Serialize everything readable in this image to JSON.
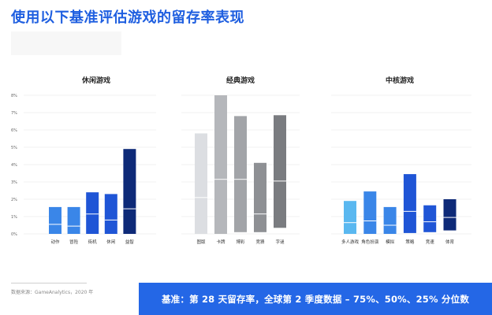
{
  "title": "使用以下基准评估游戏的留存率表现",
  "source": "数据来源：GameAnalytics，2020 年",
  "footer": "基准：第 28 天留存率，全球第 2 季度数据 – 75%、50%、25% 分位数",
  "chart_data": [
    {
      "type": "bar",
      "title": "休闲游戏",
      "ylim": [
        0,
        8
      ],
      "yticks": [
        "0%",
        "1%",
        "2%",
        "3%",
        "4%",
        "5%",
        "6%",
        "7%",
        "8%"
      ],
      "categories": [
        "动作",
        "冒险",
        "街机",
        "休闲",
        "益智"
      ],
      "series": [
        {
          "name": "75%",
          "values": [
            1.55,
            1.55,
            2.4,
            2.3,
            4.9
          ]
        },
        {
          "name": "50%",
          "values": [
            0.55,
            0.45,
            1.15,
            0.8,
            1.45
          ]
        },
        {
          "name": "25%",
          "values": [
            0.0,
            0.0,
            0.0,
            0.0,
            0.0
          ]
        }
      ],
      "colors": [
        "#3a86e8",
        "#3a86e8",
        "#1f55d6",
        "#1f55d6",
        "#0e2a78"
      ]
    },
    {
      "type": "bar",
      "title": "经典游戏",
      "ylim": [
        0,
        8
      ],
      "categories": [
        "图版",
        "卡牌",
        "博彩",
        "竞猜",
        "字谜"
      ],
      "series": [
        {
          "name": "75%",
          "values": [
            5.8,
            8.0,
            6.8,
            4.1,
            6.85
          ]
        },
        {
          "name": "50%",
          "values": [
            2.1,
            3.15,
            3.15,
            1.15,
            3.05
          ]
        },
        {
          "name": "25%",
          "values": [
            0.0,
            0.0,
            0.1,
            0.1,
            0.35
          ]
        }
      ],
      "colors": [
        "#dcdee2",
        "#b5b7bb",
        "#a2a4a8",
        "#8e9094",
        "#7a7c80"
      ]
    },
    {
      "type": "bar",
      "title": "中核游戏",
      "ylim": [
        0,
        8
      ],
      "categories": [
        "多人游戏",
        "角色扮演",
        "模拟",
        "策略",
        "竞速",
        "体育"
      ],
      "series": [
        {
          "name": "75%",
          "values": [
            1.9,
            2.45,
            1.55,
            3.45,
            1.65,
            2.0
          ]
        },
        {
          "name": "50%",
          "values": [
            0.65,
            0.75,
            0.5,
            1.3,
            0.7,
            0.95
          ]
        },
        {
          "name": "25%",
          "values": [
            0.0,
            0.0,
            0.0,
            0.05,
            0.1,
            0.2
          ]
        }
      ],
      "colors": [
        "#5ab8f0",
        "#3a86e8",
        "#3a86e8",
        "#1f55d6",
        "#1f55d6",
        "#0e2a78"
      ]
    }
  ]
}
